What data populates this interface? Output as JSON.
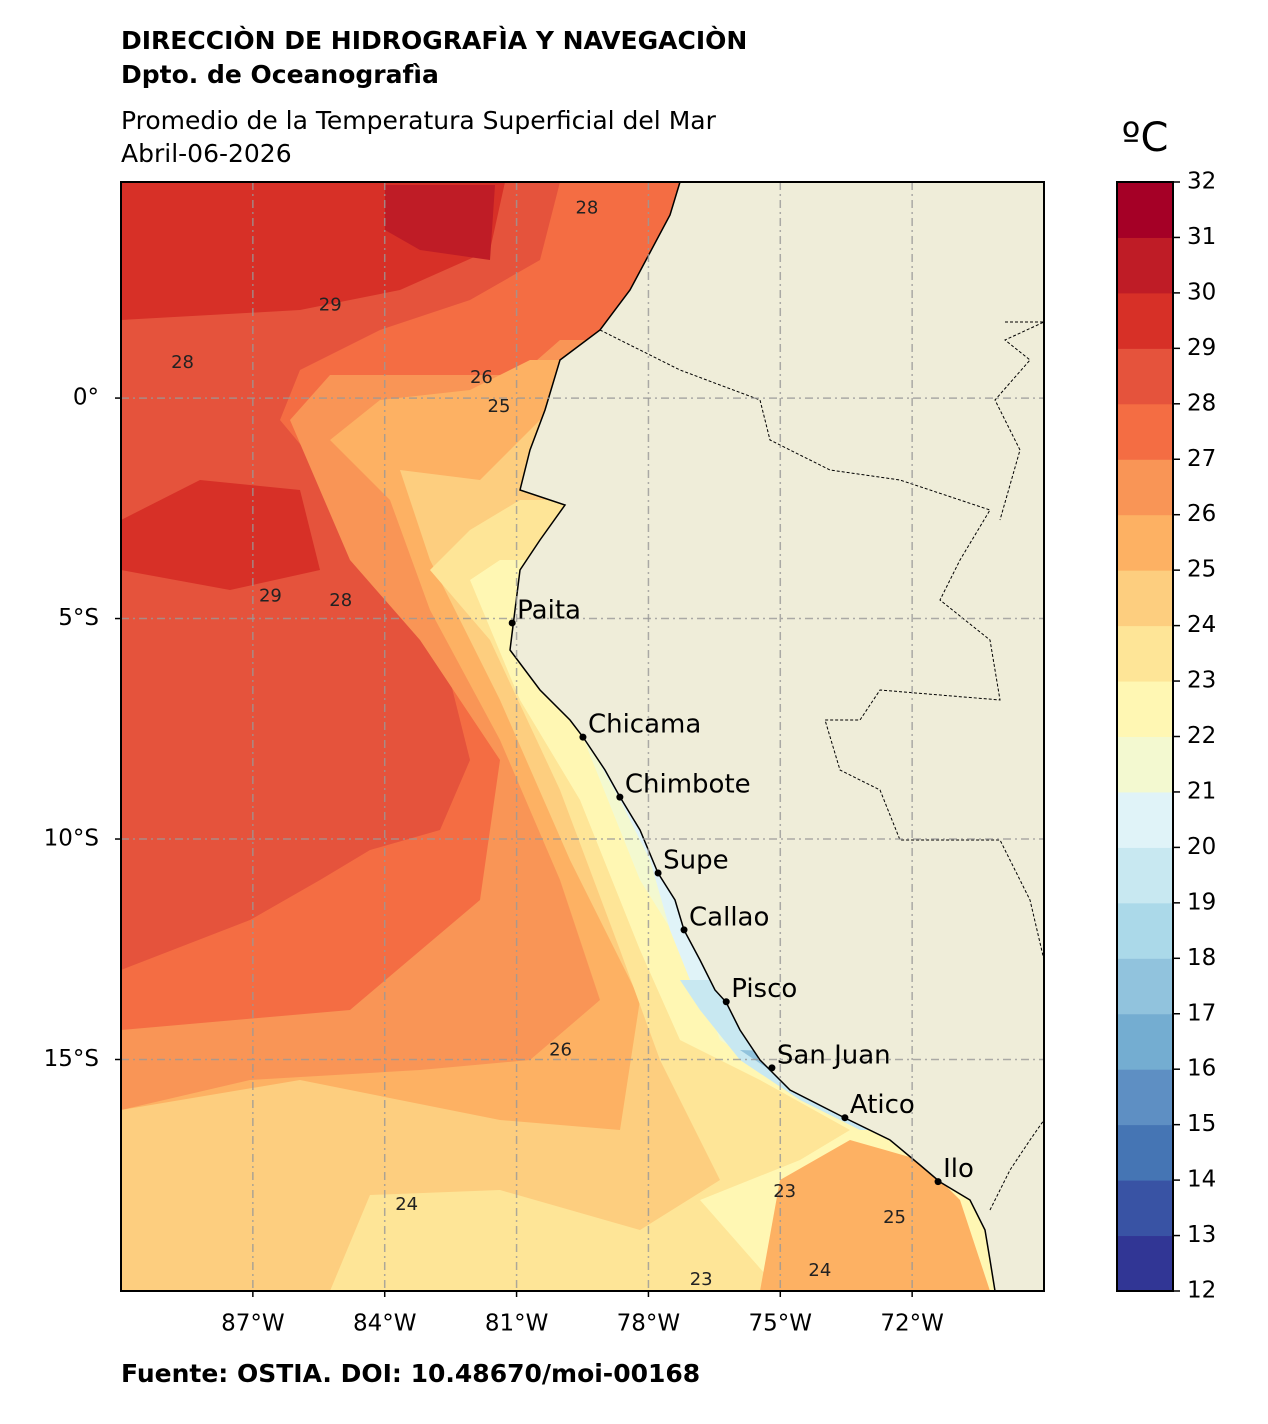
{
  "header": {
    "title": "DIRECCIÒN DE HIDROGRAFÌA Y NAVEGACIÒN",
    "department": "Dpto. de Oceanografìa",
    "subtitle": "Promedio de la Temperatura Superficial del Mar",
    "date": "Abril-06-2026"
  },
  "map": {
    "xlim": [
      -90,
      -69
    ],
    "ylim": [
      -20.25,
      4.9
    ],
    "xticks": [
      {
        "value": -87,
        "label": "87°W"
      },
      {
        "value": -84,
        "label": "84°W"
      },
      {
        "value": -81,
        "label": "81°W"
      },
      {
        "value": -78,
        "label": "78°W"
      },
      {
        "value": -75,
        "label": "75°W"
      },
      {
        "value": -72,
        "label": "72°W"
      }
    ],
    "yticks": [
      {
        "value": 0,
        "label": "0°"
      },
      {
        "value": -5,
        "label": "5°S"
      },
      {
        "value": -10,
        "label": "10°S"
      },
      {
        "value": -15,
        "label": "15°S"
      }
    ],
    "grid": true,
    "cities": [
      {
        "name": "Paita",
        "lon": -81.1,
        "lat": -5.1
      },
      {
        "name": "Chicama",
        "lon": -79.49,
        "lat": -7.69
      },
      {
        "name": "Chimbote",
        "lon": -78.65,
        "lat": -9.05
      },
      {
        "name": "Supe",
        "lon": -77.78,
        "lat": -10.77
      },
      {
        "name": "Callao",
        "lon": -77.19,
        "lat": -12.06
      },
      {
        "name": "Pisco",
        "lon": -76.23,
        "lat": -13.69
      },
      {
        "name": "San Juan",
        "lon": -75.19,
        "lat": -15.19
      },
      {
        "name": "Atico",
        "lon": -73.53,
        "lat": -16.32
      },
      {
        "name": "Ilo",
        "lon": -71.41,
        "lat": -17.77
      }
    ],
    "contour_labels": [
      {
        "value": 28,
        "lon": -88.6,
        "lat": 0.8
      },
      {
        "value": 29,
        "lon": -85.24,
        "lat": 2.1
      },
      {
        "value": 26,
        "lon": -81.8,
        "lat": 0.46
      },
      {
        "value": 25,
        "lon": -81.4,
        "lat": -0.2
      },
      {
        "value": 28,
        "lon": -85.0,
        "lat": -4.6
      },
      {
        "value": 29,
        "lon": -86.6,
        "lat": -4.5
      },
      {
        "value": 26,
        "lon": -80.0,
        "lat": -14.8
      },
      {
        "value": 24,
        "lon": -83.5,
        "lat": -18.3
      },
      {
        "value": 23,
        "lon": -76.8,
        "lat": -20.0
      },
      {
        "value": 24,
        "lon": -74.1,
        "lat": -19.8
      },
      {
        "value": 25,
        "lon": -72.4,
        "lat": -18.6
      },
      {
        "value": 23,
        "lon": -74.9,
        "lat": -18.0
      },
      {
        "value": 28,
        "lon": -79.4,
        "lat": 4.3
      }
    ]
  },
  "colorbar": {
    "label": "ºC",
    "range": [
      12,
      32
    ],
    "ticks": [
      12,
      13,
      14,
      15,
      16,
      17,
      18,
      19,
      20,
      21,
      22,
      23,
      24,
      25,
      26,
      27,
      28,
      29,
      30,
      31,
      32
    ],
    "colors": [
      "#313695",
      "#3953a4",
      "#4575b4",
      "#5e8fc3",
      "#74add1",
      "#91c3dd",
      "#abd9e9",
      "#c8e8f1",
      "#e0f3f8",
      "#f3f9d0",
      "#fff7b3",
      "#fee597",
      "#fdce7f",
      "#fdb163",
      "#f99556",
      "#f46d43",
      "#e5533c",
      "#d73027",
      "#bf1c26",
      "#a50026"
    ]
  },
  "source": "Fuente: OSTIA. DOI: 10.48670/moi-00168"
}
